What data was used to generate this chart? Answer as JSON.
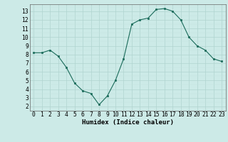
{
  "x": [
    0,
    1,
    2,
    3,
    4,
    5,
    6,
    7,
    8,
    9,
    10,
    11,
    12,
    13,
    14,
    15,
    16,
    17,
    18,
    19,
    20,
    21,
    22,
    23
  ],
  "y": [
    8.2,
    8.2,
    8.5,
    7.8,
    6.5,
    4.7,
    3.8,
    3.5,
    2.2,
    3.2,
    5.0,
    7.5,
    11.5,
    12.0,
    12.2,
    13.2,
    13.3,
    13.0,
    12.0,
    10.0,
    9.0,
    8.5,
    7.5,
    7.2
  ],
  "xlabel": "Humidex (Indice chaleur)",
  "ylim": [
    1.5,
    13.8
  ],
  "xlim": [
    -0.5,
    23.5
  ],
  "yticks": [
    2,
    3,
    4,
    5,
    6,
    7,
    8,
    9,
    10,
    11,
    12,
    13
  ],
  "xticks": [
    0,
    1,
    2,
    3,
    4,
    5,
    6,
    7,
    8,
    9,
    10,
    11,
    12,
    13,
    14,
    15,
    16,
    17,
    18,
    19,
    20,
    21,
    22,
    23
  ],
  "line_color": "#1a6b5a",
  "marker_color": "#1a6b5a",
  "bg_color": "#cceae7",
  "grid_major_color": "#b0d4d0",
  "grid_minor_color": "#c4e4e0",
  "axis_label_fontsize": 6.5,
  "tick_fontsize": 5.8
}
